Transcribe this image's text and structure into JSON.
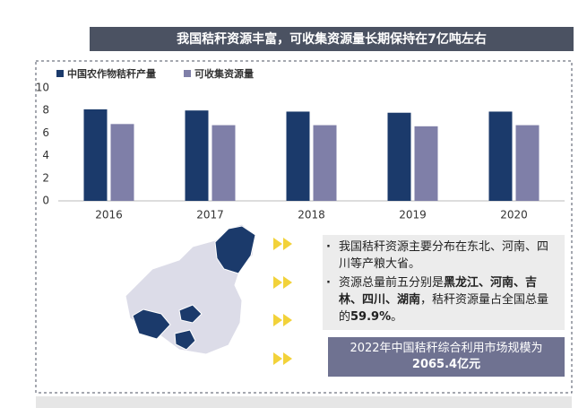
{
  "header": {
    "title": "我国秸秆资源丰富，可收集资源量长期保持在7亿吨左右"
  },
  "chart_data": {
    "type": "bar",
    "categories": [
      "2016",
      "2017",
      "2018",
      "2019",
      "2020"
    ],
    "series": [
      {
        "name": "中国农作物秸秆产量",
        "color": "#1b3a6b",
        "values": [
          8.1,
          8.0,
          7.9,
          7.8,
          7.9
        ]
      },
      {
        "name": "可收集资源量",
        "color": "#7f7fa8",
        "values": [
          6.8,
          6.7,
          6.7,
          6.6,
          6.7
        ]
      }
    ],
    "ylim": [
      0,
      10
    ],
    "yticks": [
      0,
      2,
      4,
      6,
      8,
      10
    ],
    "grid": false,
    "legend": "top-left"
  },
  "notes": {
    "bullets": [
      {
        "segments": [
          {
            "text": "我国秸秆资源主要分布在东北、河南、四川等产粮大省。",
            "bold": false
          }
        ]
      },
      {
        "segments": [
          {
            "text": "资源总量前五分别是",
            "bold": false
          },
          {
            "text": "黑龙江、河南、吉林、四川、湖南",
            "bold": true
          },
          {
            "text": "，秸秆资源量占全国总量的",
            "bold": false
          },
          {
            "text": "59.9%",
            "bold": true
          },
          {
            "text": "。",
            "bold": false
          }
        ]
      }
    ],
    "highlight": {
      "line1": "2022年中国秸秆综合利用市场规模为",
      "line2": "2065.4亿元"
    }
  }
}
